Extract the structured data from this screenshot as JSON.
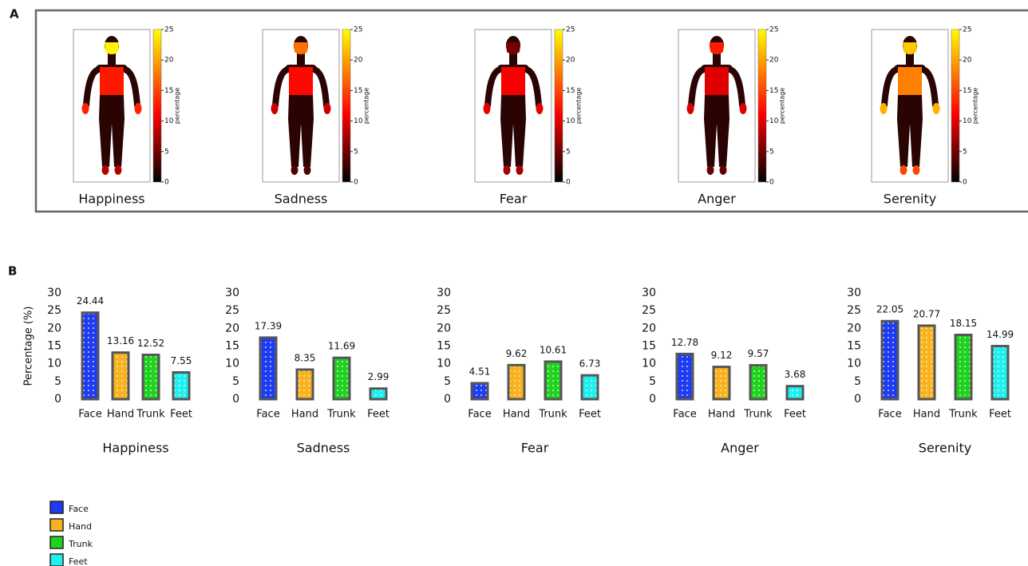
{
  "panel_labels": [
    "A",
    "B"
  ],
  "heatmap": {
    "clim": [
      0,
      25
    ],
    "cticks": [
      0,
      5,
      10,
      15,
      20,
      25
    ],
    "colorbar_label": "percentage"
  },
  "chart_data": [
    {
      "type": "bar",
      "title": "Happiness",
      "ylabel": "Percentage (%)",
      "categories": [
        "Face",
        "Hand",
        "Trunk",
        "Feet"
      ],
      "values": [
        24.44,
        13.16,
        12.52,
        7.55
      ],
      "colors": [
        "#1f3cf5",
        "#f7b21e",
        "#1ed21e",
        "#1ef0f0"
      ],
      "ylim": [
        0,
        30
      ],
      "yticks": [
        0,
        5,
        10,
        15,
        20,
        25,
        30
      ]
    },
    {
      "type": "bar",
      "title": "Sadness",
      "categories": [
        "Face",
        "Hand",
        "Trunk",
        "Feet"
      ],
      "values": [
        17.39,
        8.35,
        11.69,
        2.99
      ],
      "colors": [
        "#1f3cf5",
        "#f7b21e",
        "#1ed21e",
        "#1ef0f0"
      ],
      "ylim": [
        0,
        30
      ],
      "yticks": [
        0,
        5,
        10,
        15,
        20,
        25,
        30
      ]
    },
    {
      "type": "bar",
      "title": "Fear",
      "categories": [
        "Face",
        "Hand",
        "Trunk",
        "Feet"
      ],
      "values": [
        4.51,
        9.62,
        10.61,
        6.73
      ],
      "colors": [
        "#1f3cf5",
        "#f7b21e",
        "#1ed21e",
        "#1ef0f0"
      ],
      "ylim": [
        0,
        30
      ],
      "yticks": [
        0,
        5,
        10,
        15,
        20,
        25,
        30
      ]
    },
    {
      "type": "bar",
      "title": "Anger",
      "categories": [
        "Face",
        "Hand",
        "Trunk",
        "Feet"
      ],
      "values": [
        12.78,
        9.12,
        9.57,
        3.68
      ],
      "colors": [
        "#1f3cf5",
        "#f7b21e",
        "#1ed21e",
        "#1ef0f0"
      ],
      "ylim": [
        0,
        30
      ],
      "yticks": [
        0,
        5,
        10,
        15,
        20,
        25,
        30
      ]
    },
    {
      "type": "bar",
      "title": "Serenity",
      "categories": [
        "Face",
        "Hand",
        "Trunk",
        "Feet"
      ],
      "values": [
        22.05,
        20.77,
        18.15,
        14.99
      ],
      "colors": [
        "#1f3cf5",
        "#f7b21e",
        "#1ed21e",
        "#1ef0f0"
      ],
      "ylim": [
        0,
        30
      ],
      "yticks": [
        0,
        5,
        10,
        15,
        20,
        25,
        30
      ]
    }
  ]
}
